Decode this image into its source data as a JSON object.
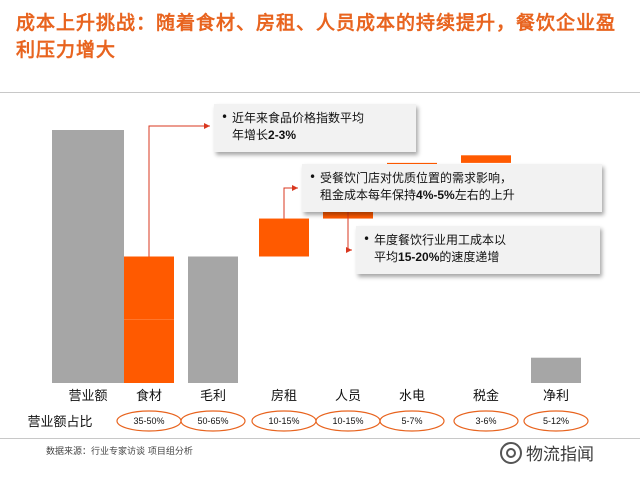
{
  "title": "成本上升挑战：随着食材、房租、人员成本的持续提升，餐饮企业盈利压力增大",
  "chart_data": {
    "type": "bar",
    "categories": [
      "营业额",
      "食材",
      "毛利",
      "房租",
      "人员",
      "水电",
      "税金",
      "净利"
    ],
    "start": [
      0,
      50,
      0,
      50,
      65,
      80,
      87,
      0
    ],
    "end": [
      100,
      0,
      50,
      65,
      80,
      87,
      90,
      10
    ],
    "kind": [
      "total",
      "cost",
      "total",
      "cost",
      "cost",
      "cost",
      "cost",
      "total"
    ],
    "ylim": [
      0,
      100
    ],
    "share_label": "营业额占比",
    "shares": [
      "35-50%",
      "50-65%",
      "10-15%",
      "10-15%",
      "5-7%",
      "3-6%",
      "5-12%"
    ],
    "colors": {
      "total": "#a6a6a6",
      "cost": "#ff5a00",
      "arrow": "#d9371f",
      "pill": "#e8641f"
    },
    "notes": [
      {
        "text": "近年来食品价格指数平均",
        "text2_pre": "年增长",
        "text2_bold": "2-3%",
        "text2_post": ""
      },
      {
        "text": "受餐饮门店对优质位置的需求影响，",
        "text2_pre": "租金成本每年保持",
        "text2_bold": "4%-5%",
        "text2_post": "左右的上升"
      },
      {
        "text": "年度餐饮行业用工成本以",
        "text2_pre": "平均",
        "text2_bold": "15-20%",
        "text2_post": "的速度递增"
      }
    ]
  },
  "source": "数据来源：行业专家访谈  项目组分析",
  "logo": {
    "text": "物流指闻",
    "icon": "wechat-icon"
  }
}
